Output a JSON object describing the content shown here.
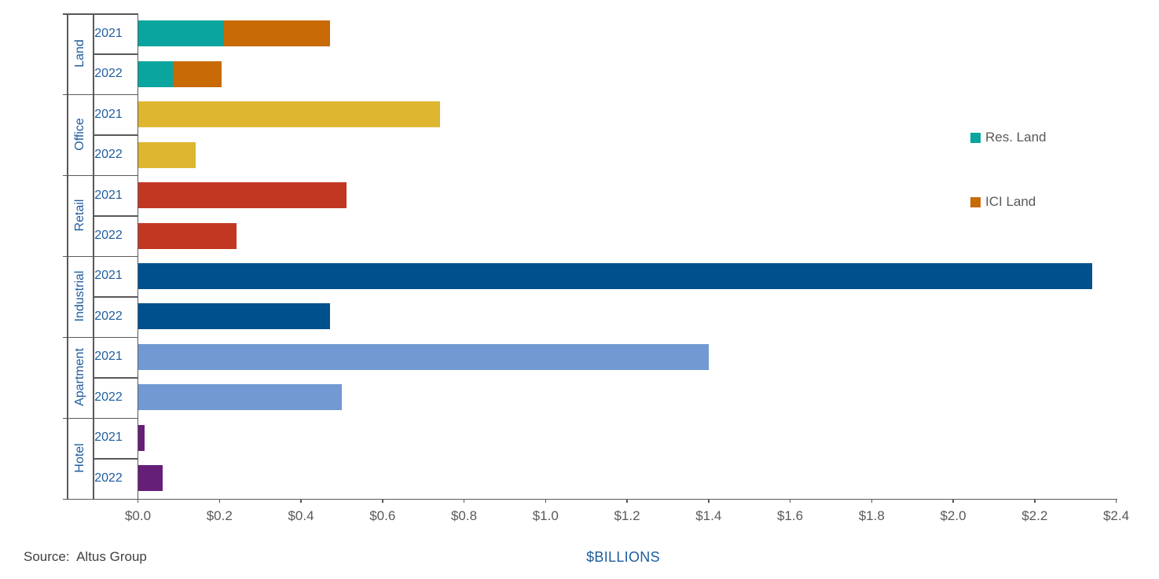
{
  "chart_data": {
    "type": "bar",
    "orientation": "horizontal",
    "title": "",
    "xlabel": "$BILLIONS",
    "ylabel": "",
    "source": "Source:  Altus Group",
    "x_axis": {
      "min": 0,
      "max": 2.4,
      "tick_step": 0.2,
      "tick_labels": [
        "$0.0",
        "$0.2",
        "$0.4",
        "$0.6",
        "$0.8",
        "$1.0",
        "$1.2",
        "$1.4",
        "$1.6",
        "$1.8",
        "$2.0",
        "$2.2",
        "$2.4"
      ],
      "grid": false
    },
    "legend": [
      {
        "label": "Res. Land",
        "color": "#09a59e"
      },
      {
        "label": "ICI Land",
        "color": "#c86a05"
      }
    ],
    "legend_position": "right",
    "groups": [
      {
        "category": "Land",
        "bars": [
          {
            "year": "2021",
            "segments": [
              {
                "series": "Res. Land",
                "value": 0.21,
                "color": "#09a59e"
              },
              {
                "series": "ICI Land",
                "value": 0.26,
                "color": "#c86a05"
              }
            ]
          },
          {
            "year": "2022",
            "segments": [
              {
                "series": "Res. Land",
                "value": 0.085,
                "color": "#09a59e"
              },
              {
                "series": "ICI Land",
                "value": 0.12,
                "color": "#c86a05"
              }
            ]
          }
        ]
      },
      {
        "category": "Office",
        "bars": [
          {
            "year": "2021",
            "segments": [
              {
                "series": "Office",
                "value": 0.74,
                "color": "#dfb630"
              }
            ]
          },
          {
            "year": "2022",
            "segments": [
              {
                "series": "Office",
                "value": 0.14,
                "color": "#dfb630"
              }
            ]
          }
        ]
      },
      {
        "category": "Retail",
        "bars": [
          {
            "year": "2021",
            "segments": [
              {
                "series": "Retail",
                "value": 0.51,
                "color": "#c23722"
              }
            ]
          },
          {
            "year": "2022",
            "segments": [
              {
                "series": "Retail",
                "value": 0.24,
                "color": "#c23722"
              }
            ]
          }
        ]
      },
      {
        "category": "Industrial",
        "bars": [
          {
            "year": "2021",
            "segments": [
              {
                "series": "Industrial",
                "value": 2.34,
                "color": "#00508e"
              }
            ]
          },
          {
            "year": "2022",
            "segments": [
              {
                "series": "Industrial",
                "value": 0.47,
                "color": "#00508e"
              }
            ]
          }
        ]
      },
      {
        "category": "Apartment",
        "bars": [
          {
            "year": "2021",
            "segments": [
              {
                "series": "Apartment",
                "value": 1.4,
                "color": "#7299d2"
              }
            ]
          },
          {
            "year": "2022",
            "segments": [
              {
                "series": "Apartment",
                "value": 0.5,
                "color": "#7299d2"
              }
            ]
          }
        ]
      },
      {
        "category": "Hotel",
        "bars": [
          {
            "year": "2021",
            "segments": [
              {
                "series": "Hotel",
                "value": 0.015,
                "color": "#661f78"
              }
            ]
          },
          {
            "year": "2022",
            "segments": [
              {
                "series": "Hotel",
                "value": 0.06,
                "color": "#661f78"
              }
            ]
          }
        ]
      }
    ]
  },
  "colors": {
    "axis_line": "#595959",
    "tick_text": "#595959",
    "category_text": "#1e5c9e",
    "axis_title_text": "#1e5c9e",
    "source_text": "#404040",
    "legend_text": "#595959",
    "background": "#ffffff"
  }
}
